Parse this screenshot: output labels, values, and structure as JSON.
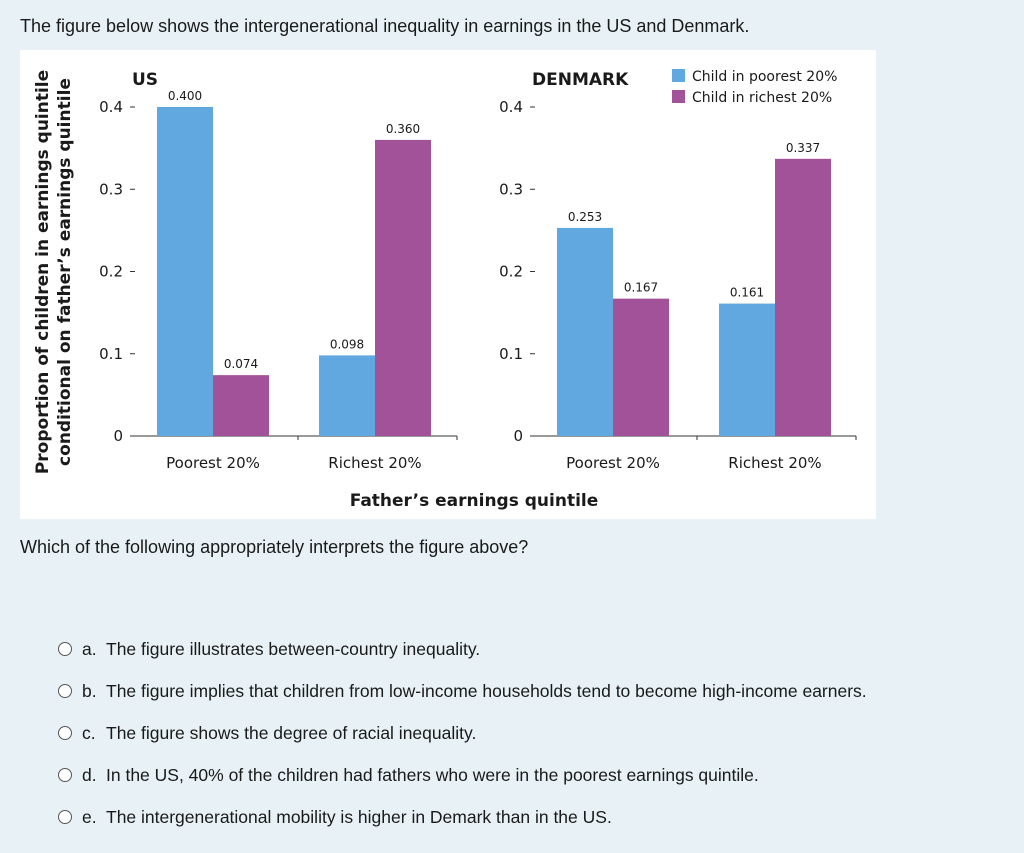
{
  "question": {
    "intro": "The figure below shows the intergenerational inequality in earnings in the US and Denmark.",
    "prompt": "Which of the following appropriately interprets the figure above?"
  },
  "options": [
    {
      "letter": "a.",
      "text": "The figure illustrates between-country inequality."
    },
    {
      "letter": "b.",
      "text": "The figure implies that children from low-income households tend to become high-income earners."
    },
    {
      "letter": "c.",
      "text": "The figure shows the degree of racial inequality."
    },
    {
      "letter": "d.",
      "text": "In the US, 40% of the children had fathers who were in the poorest earnings quintile."
    },
    {
      "letter": "e.",
      "text": "The intergenerational mobility is higher in Demark than in the US."
    }
  ],
  "colors": {
    "poorest": "#62a8e0",
    "richest": "#a15299"
  },
  "chart_data": {
    "type": "bar",
    "ylabel_line1": "Proportion of children in earnings quintile",
    "ylabel_line2": "conditional on father’s earnings quintile",
    "xlabel": "Father’s earnings quintile",
    "ylim": [
      0,
      0.4
    ],
    "yticks": [
      "0",
      "0.1",
      "0.2",
      "0.3",
      "0.4"
    ],
    "legend": [
      "Child in poorest 20%",
      "Child in richest 20%"
    ],
    "legend_position": "top-right",
    "panels": [
      {
        "title": "US",
        "categories": [
          "Poorest 20%",
          "Richest 20%"
        ],
        "series": [
          {
            "name": "Child in poorest 20%",
            "values": [
              0.4,
              0.098
            ],
            "labels": [
              "0.400",
              "0.098"
            ]
          },
          {
            "name": "Child in richest 20%",
            "values": [
              0.074,
              0.36
            ],
            "labels": [
              "0.074",
              "0.360"
            ]
          }
        ]
      },
      {
        "title": "DENMARK",
        "categories": [
          "Poorest 20%",
          "Richest 20%"
        ],
        "series": [
          {
            "name": "Child in poorest 20%",
            "values": [
              0.253,
              0.161
            ],
            "labels": [
              "0.253",
              "0.161"
            ]
          },
          {
            "name": "Child in richest 20%",
            "values": [
              0.167,
              0.337
            ],
            "labels": [
              "0.167",
              "0.337"
            ]
          }
        ]
      }
    ]
  }
}
